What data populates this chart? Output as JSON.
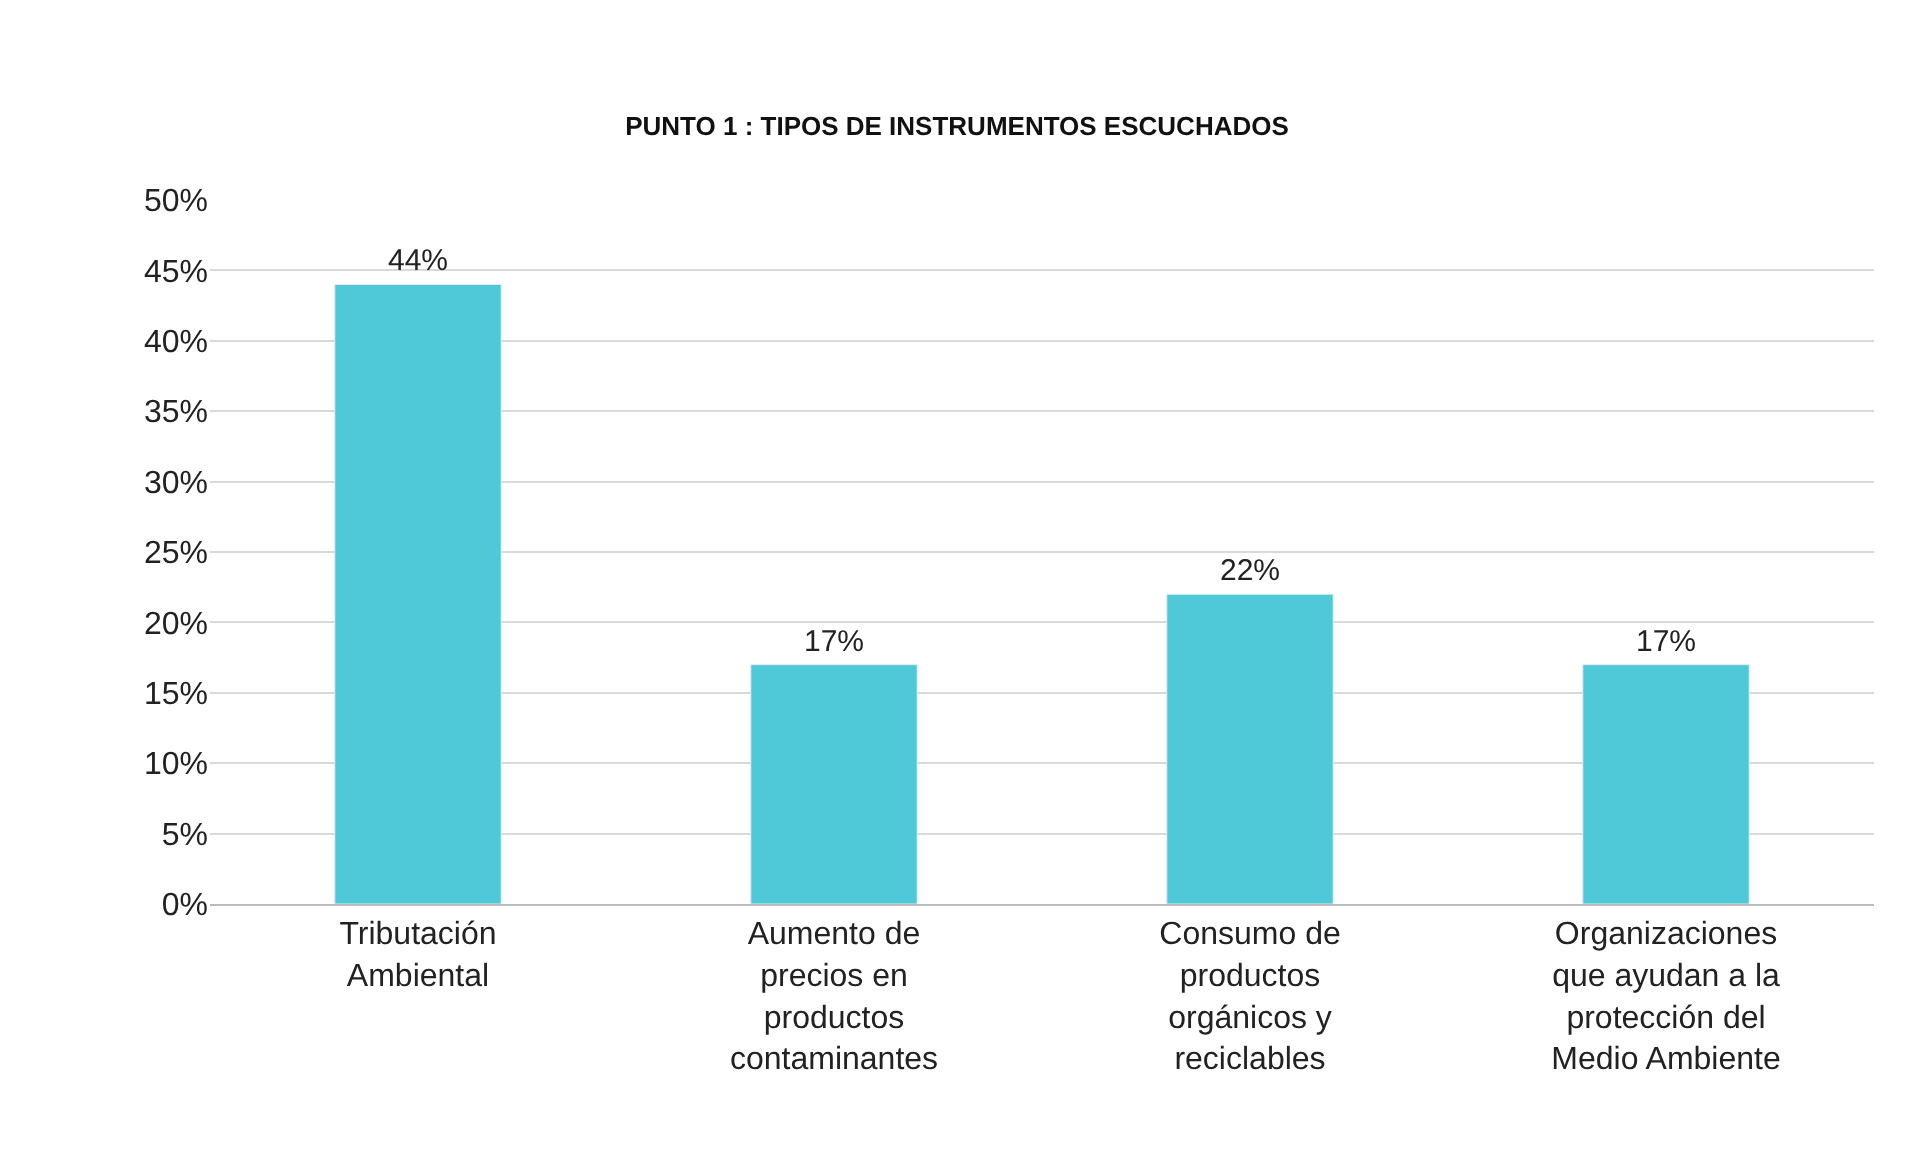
{
  "chart_data": {
    "type": "bar",
    "title": "PUNTO 1 : TIPOS DE INSTRUMENTOS ESCUCHADOS",
    "categories": [
      "Tributación Ambiental",
      "Aumento de precios en productos contaminantes",
      "Consumo de productos orgánicos y reciclables",
      "Organizaciones que ayudan a la protección del Medio Ambiente"
    ],
    "values": [
      44,
      17,
      22,
      17
    ],
    "color": "#4fc8d8",
    "value_labels": [
      "44%",
      "17%",
      "22%",
      "17%"
    ],
    "ylim": [
      0,
      50
    ],
    "yticks": [
      {
        "value": 0,
        "label": "0%"
      },
      {
        "value": 5,
        "label": "5%"
      },
      {
        "value": 10,
        "label": "10%"
      },
      {
        "value": 15,
        "label": "15%"
      },
      {
        "value": 20,
        "label": "20%"
      },
      {
        "value": 25,
        "label": "25%"
      },
      {
        "value": 30,
        "label": "30%"
      },
      {
        "value": 35,
        "label": "35%"
      },
      {
        "value": 40,
        "label": "40%"
      },
      {
        "value": 45,
        "label": "45%"
      },
      {
        "value": 50,
        "label": "50%"
      }
    ],
    "grid": "y"
  }
}
